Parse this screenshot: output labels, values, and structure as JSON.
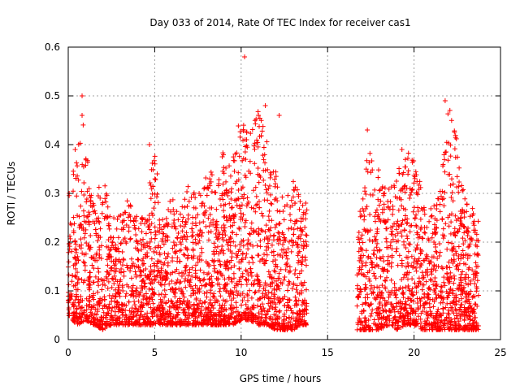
{
  "chart_data": {
    "type": "scatter",
    "title": "Day 033 of 2014, Rate Of TEC Index for receiver cas1",
    "xlabel": "GPS time / hours",
    "ylabel": "ROTI / TECUs",
    "xlim": [
      0,
      25
    ],
    "ylim": [
      0,
      0.6
    ],
    "xticks": [
      0,
      5,
      10,
      15,
      20,
      25
    ],
    "yticks": [
      0,
      0.1,
      0.2,
      0.3,
      0.4,
      0.5,
      0.6
    ],
    "xtick_labels": [
      "0",
      "5",
      "10",
      "15",
      "20",
      "25"
    ],
    "ytick_labels": [
      "0",
      "0.1",
      "0.2",
      "0.3",
      "0.4",
      "0.5",
      "0.6"
    ],
    "grid": true,
    "marker": "+",
    "color": "#ff0000",
    "series": [
      {
        "name": "cas1",
        "x_range_segments": [
          [
            0.0,
            13.8
          ],
          [
            16.7,
            23.75
          ]
        ],
        "envelope": {
          "x": [
            0,
            0.5,
            1,
            1.5,
            2,
            2.5,
            3,
            3.5,
            4,
            4.5,
            5,
            5.5,
            6,
            6.5,
            7,
            7.5,
            8,
            8.5,
            9,
            9.5,
            10,
            10.5,
            11,
            11.5,
            12,
            12.5,
            13,
            13.5,
            13.8,
            16.7,
            17,
            17.5,
            18,
            18.5,
            19,
            19.5,
            20,
            20.5,
            21,
            21.5,
            22,
            22.5,
            23,
            23.5,
            23.75
          ],
          "upper": [
            0.29,
            0.39,
            0.46,
            0.27,
            0.35,
            0.24,
            0.28,
            0.29,
            0.25,
            0.27,
            0.4,
            0.24,
            0.3,
            0.26,
            0.33,
            0.3,
            0.35,
            0.34,
            0.39,
            0.38,
            0.47,
            0.43,
            0.47,
            0.41,
            0.35,
            0.28,
            0.34,
            0.28,
            0.28,
            0.26,
            0.3,
            0.43,
            0.35,
            0.34,
            0.34,
            0.39,
            0.38,
            0.3,
            0.27,
            0.3,
            0.49,
            0.41,
            0.28,
            0.27,
            0.24
          ],
          "lower": [
            0.05,
            0.03,
            0.04,
            0.03,
            0.02,
            0.03,
            0.03,
            0.03,
            0.03,
            0.03,
            0.03,
            0.03,
            0.03,
            0.03,
            0.03,
            0.03,
            0.03,
            0.03,
            0.03,
            0.03,
            0.04,
            0.04,
            0.03,
            0.03,
            0.02,
            0.02,
            0.02,
            0.03,
            0.03,
            0.02,
            0.02,
            0.02,
            0.02,
            0.03,
            0.02,
            0.03,
            0.03,
            0.02,
            0.02,
            0.02,
            0.02,
            0.02,
            0.02,
            0.02,
            0.02
          ]
        },
        "outliers": [
          {
            "x": 0.8,
            "y": 0.5
          },
          {
            "x": 0.8,
            "y": 0.46
          },
          {
            "x": 0.4,
            "y": 0.39
          },
          {
            "x": 4.7,
            "y": 0.4
          },
          {
            "x": 10.2,
            "y": 0.58
          },
          {
            "x": 11.4,
            "y": 0.48
          },
          {
            "x": 11.0,
            "y": 0.46
          },
          {
            "x": 12.2,
            "y": 0.46
          },
          {
            "x": 21.8,
            "y": 0.49
          },
          {
            "x": 17.3,
            "y": 0.43
          },
          {
            "x": 19.3,
            "y": 0.39
          }
        ]
      }
    ]
  }
}
